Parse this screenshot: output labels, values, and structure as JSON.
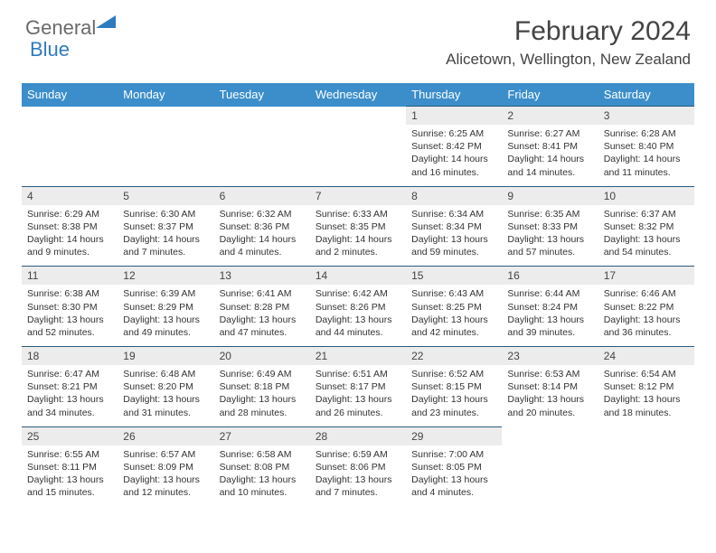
{
  "logo": {
    "general": "General",
    "blue": "Blue"
  },
  "title": "February 2024",
  "location": "Alicetown, Wellington, New Zealand",
  "colors": {
    "header_bg": "#3c8ecb",
    "header_fg": "#ffffff",
    "daynum_bg": "#ececec",
    "accent_line": "#2a5b80",
    "text": "#333333"
  },
  "day_headers": [
    "Sunday",
    "Monday",
    "Tuesday",
    "Wednesday",
    "Thursday",
    "Friday",
    "Saturday"
  ],
  "weeks": [
    [
      null,
      null,
      null,
      null,
      {
        "n": "1",
        "sr": "6:25 AM",
        "ss": "8:42 PM",
        "dl": "14 hours and 16 minutes."
      },
      {
        "n": "2",
        "sr": "6:27 AM",
        "ss": "8:41 PM",
        "dl": "14 hours and 14 minutes."
      },
      {
        "n": "3",
        "sr": "6:28 AM",
        "ss": "8:40 PM",
        "dl": "14 hours and 11 minutes."
      }
    ],
    [
      {
        "n": "4",
        "sr": "6:29 AM",
        "ss": "8:38 PM",
        "dl": "14 hours and 9 minutes."
      },
      {
        "n": "5",
        "sr": "6:30 AM",
        "ss": "8:37 PM",
        "dl": "14 hours and 7 minutes."
      },
      {
        "n": "6",
        "sr": "6:32 AM",
        "ss": "8:36 PM",
        "dl": "14 hours and 4 minutes."
      },
      {
        "n": "7",
        "sr": "6:33 AM",
        "ss": "8:35 PM",
        "dl": "14 hours and 2 minutes."
      },
      {
        "n": "8",
        "sr": "6:34 AM",
        "ss": "8:34 PM",
        "dl": "13 hours and 59 minutes."
      },
      {
        "n": "9",
        "sr": "6:35 AM",
        "ss": "8:33 PM",
        "dl": "13 hours and 57 minutes."
      },
      {
        "n": "10",
        "sr": "6:37 AM",
        "ss": "8:32 PM",
        "dl": "13 hours and 54 minutes."
      }
    ],
    [
      {
        "n": "11",
        "sr": "6:38 AM",
        "ss": "8:30 PM",
        "dl": "13 hours and 52 minutes."
      },
      {
        "n": "12",
        "sr": "6:39 AM",
        "ss": "8:29 PM",
        "dl": "13 hours and 49 minutes."
      },
      {
        "n": "13",
        "sr": "6:41 AM",
        "ss": "8:28 PM",
        "dl": "13 hours and 47 minutes."
      },
      {
        "n": "14",
        "sr": "6:42 AM",
        "ss": "8:26 PM",
        "dl": "13 hours and 44 minutes."
      },
      {
        "n": "15",
        "sr": "6:43 AM",
        "ss": "8:25 PM",
        "dl": "13 hours and 42 minutes."
      },
      {
        "n": "16",
        "sr": "6:44 AM",
        "ss": "8:24 PM",
        "dl": "13 hours and 39 minutes."
      },
      {
        "n": "17",
        "sr": "6:46 AM",
        "ss": "8:22 PM",
        "dl": "13 hours and 36 minutes."
      }
    ],
    [
      {
        "n": "18",
        "sr": "6:47 AM",
        "ss": "8:21 PM",
        "dl": "13 hours and 34 minutes."
      },
      {
        "n": "19",
        "sr": "6:48 AM",
        "ss": "8:20 PM",
        "dl": "13 hours and 31 minutes."
      },
      {
        "n": "20",
        "sr": "6:49 AM",
        "ss": "8:18 PM",
        "dl": "13 hours and 28 minutes."
      },
      {
        "n": "21",
        "sr": "6:51 AM",
        "ss": "8:17 PM",
        "dl": "13 hours and 26 minutes."
      },
      {
        "n": "22",
        "sr": "6:52 AM",
        "ss": "8:15 PM",
        "dl": "13 hours and 23 minutes."
      },
      {
        "n": "23",
        "sr": "6:53 AM",
        "ss": "8:14 PM",
        "dl": "13 hours and 20 minutes."
      },
      {
        "n": "24",
        "sr": "6:54 AM",
        "ss": "8:12 PM",
        "dl": "13 hours and 18 minutes."
      }
    ],
    [
      {
        "n": "25",
        "sr": "6:55 AM",
        "ss": "8:11 PM",
        "dl": "13 hours and 15 minutes."
      },
      {
        "n": "26",
        "sr": "6:57 AM",
        "ss": "8:09 PM",
        "dl": "13 hours and 12 minutes."
      },
      {
        "n": "27",
        "sr": "6:58 AM",
        "ss": "8:08 PM",
        "dl": "13 hours and 10 minutes."
      },
      {
        "n": "28",
        "sr": "6:59 AM",
        "ss": "8:06 PM",
        "dl": "13 hours and 7 minutes."
      },
      {
        "n": "29",
        "sr": "7:00 AM",
        "ss": "8:05 PM",
        "dl": "13 hours and 4 minutes."
      },
      null,
      null
    ]
  ],
  "labels": {
    "sunrise": "Sunrise:",
    "sunset": "Sunset:",
    "daylight": "Daylight:"
  }
}
